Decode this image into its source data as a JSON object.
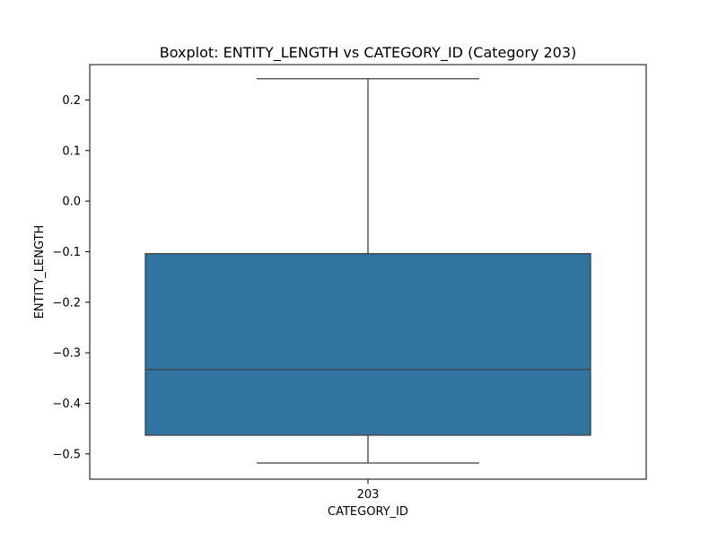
{
  "chart_data": {
    "type": "boxplot",
    "title": "Boxplot: ENTITY_LENGTH vs CATEGORY_ID (Category 203)",
    "xlabel": "CATEGORY_ID",
    "ylabel": "ENTITY_LENGTH",
    "categories": [
      "203"
    ],
    "boxes": [
      {
        "category": "203",
        "whisker_low": -0.518,
        "q1": -0.463,
        "median": -0.333,
        "q3": -0.104,
        "whisker_high": 0.242
      }
    ],
    "ylim": [
      -0.55,
      0.27
    ],
    "yticks": [
      -0.5,
      -0.4,
      -0.3,
      -0.2,
      -0.1,
      0.0,
      0.1,
      0.2
    ],
    "ytick_labels": [
      "−0.5",
      "−0.4",
      "−0.3",
      "−0.2",
      "−0.1",
      "0.0",
      "0.1",
      "0.2"
    ],
    "grid": false,
    "colors": {
      "box_fill": "#3274a1",
      "line": "#3f3f3f"
    }
  }
}
